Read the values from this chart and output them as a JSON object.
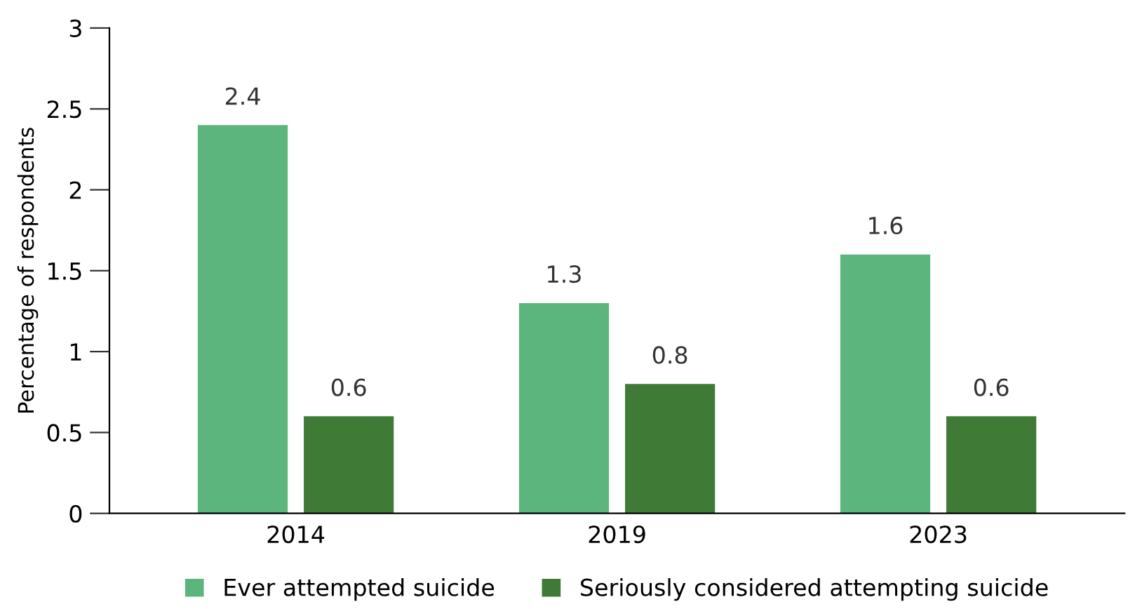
{
  "chart_data": {
    "type": "bar",
    "ylabel": "Percentage of respondents",
    "categories": [
      "2014",
      "2019",
      "2023"
    ],
    "series": [
      {
        "name": "Ever attempted suicide",
        "color": "#5db57e",
        "values": [
          2.4,
          1.3,
          1.6
        ]
      },
      {
        "name": "Seriously considered attempting suicide",
        "color": "#3f7b37",
        "values": [
          0.6,
          0.8,
          0.6
        ]
      }
    ],
    "ylim": [
      0,
      3
    ],
    "yticks": [
      0,
      0.5,
      1,
      1.5,
      2,
      2.5,
      3
    ],
    "data_labels": true,
    "grid": false,
    "legend": "bottom"
  }
}
